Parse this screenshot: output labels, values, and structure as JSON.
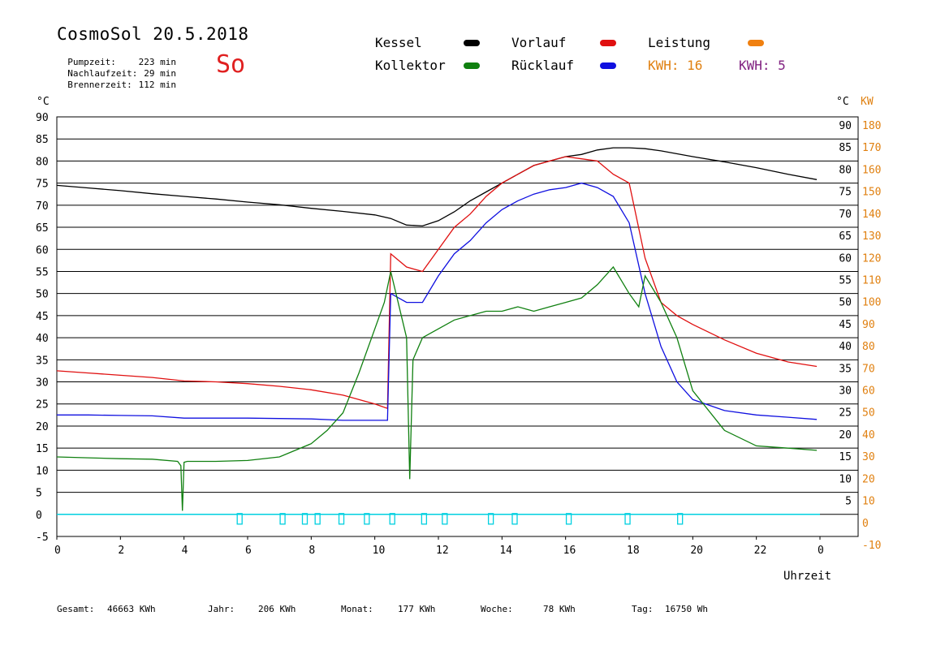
{
  "header": {
    "title": "CosmoSol 20.5.2018",
    "day_label": "So",
    "stats": [
      {
        "label": "Pumpzeit:",
        "value": "223 min"
      },
      {
        "label": "Nachlaufzeit:",
        "value": "29 min"
      },
      {
        "label": "Brennerzeit:",
        "value": "112 min"
      }
    ]
  },
  "legend": {
    "items": [
      {
        "label": "Kessel",
        "color": "#000000"
      },
      {
        "label": "Vorlauf",
        "color": "#e01010"
      },
      {
        "label": "Leistung",
        "color": "#f08010"
      },
      {
        "label": "Kollektor",
        "color": "#108010"
      },
      {
        "label": "Rücklauf",
        "color": "#1010e0"
      }
    ],
    "kwh_orange": "KWH: 16",
    "kwh_purple": "KWH: 5",
    "kwh_orange_color": "#e08010",
    "kwh_purple_color": "#802080"
  },
  "footer": {
    "items": [
      {
        "label": "Gesamt:",
        "value": "46663 KWh"
      },
      {
        "label": "Jahr:",
        "value": "206 KWh"
      },
      {
        "label": "Monat:",
        "value": "177 KWh"
      },
      {
        "label": "Woche:",
        "value": "78 KWh"
      },
      {
        "label": "Tag:",
        "value": "16750 Wh"
      }
    ]
  },
  "chart_data": {
    "type": "line",
    "xlabel": "Uhrzeit",
    "ylabel_left": "°C",
    "ylabel_right_1": "°C",
    "ylabel_right_2": "KW",
    "xlim": [
      0,
      24
    ],
    "ylim": [
      -5,
      90
    ],
    "x_ticks": [
      "0",
      "2",
      "4",
      "6",
      "8",
      "10",
      "12",
      "14",
      "16",
      "18",
      "20",
      "22",
      "0"
    ],
    "y_ticks_left": [
      "90",
      "85",
      "80",
      "75",
      "70",
      "65",
      "60",
      "55",
      "50",
      "45",
      "40",
      "35",
      "30",
      "25",
      "20",
      "15",
      "10",
      "5",
      "0",
      "-5"
    ],
    "y_ticks_right_c": [
      "90",
      "85",
      "80",
      "75",
      "70",
      "65",
      "60",
      "55",
      "50",
      "45",
      "40",
      "35",
      "30",
      "25",
      "20",
      "15",
      "10",
      "5"
    ],
    "y_ticks_right_kw": [
      "180",
      "170",
      "160",
      "150",
      "140",
      "130",
      "120",
      "110",
      "100",
      "90",
      "80",
      "70",
      "60",
      "50",
      "40",
      "30",
      "20",
      "10",
      "0",
      "-10"
    ],
    "grid": true,
    "series": [
      {
        "name": "Kessel",
        "color": "#000000",
        "x": [
          0,
          1,
          2,
          3,
          4,
          5,
          6,
          7,
          8,
          9,
          10,
          10.5,
          11,
          11.5,
          12,
          12.5,
          13,
          13.5,
          14,
          14.5,
          15,
          15.5,
          16,
          16.5,
          17,
          17.5,
          18,
          18.5,
          19,
          20,
          21,
          22,
          23,
          23.9
        ],
        "y": [
          74.5,
          73.9,
          73.3,
          72.6,
          72.0,
          71.4,
          70.7,
          70.1,
          69.3,
          68.6,
          67.8,
          67.0,
          65.5,
          65.3,
          66.5,
          68.5,
          71.0,
          73.0,
          75.0,
          77.0,
          79.0,
          80.0,
          81.0,
          81.5,
          82.5,
          83.0,
          83.0,
          82.8,
          82.3,
          81.0,
          79.8,
          78.5,
          77.0,
          75.8
        ]
      },
      {
        "name": "Vorlauf",
        "color": "#e01010",
        "x": [
          0,
          1,
          2,
          3,
          4,
          5,
          6,
          7,
          8,
          9,
          10,
          10.4,
          10.5,
          11,
          11.5,
          12,
          12.5,
          13,
          13.5,
          14,
          14.5,
          15,
          15.5,
          16,
          16.5,
          17,
          17.5,
          18,
          18.5,
          19,
          19.5,
          20,
          21,
          22,
          23,
          23.9
        ],
        "y": [
          32.5,
          32.0,
          31.5,
          31.0,
          30.2,
          30.0,
          29.6,
          29.0,
          28.2,
          27.0,
          25.0,
          24.0,
          59.0,
          56.0,
          55.0,
          60.0,
          65.0,
          68.0,
          72.0,
          75.0,
          77.0,
          79.0,
          80.0,
          81.0,
          80.5,
          80.0,
          77.0,
          75.0,
          58.0,
          48.0,
          45.0,
          43.0,
          39.5,
          36.5,
          34.5,
          33.5
        ]
      },
      {
        "name": "Rücklauf",
        "color": "#1010e0",
        "x": [
          0,
          1,
          2,
          3,
          4,
          5,
          6,
          7,
          8,
          9,
          10,
          10.4,
          10.5,
          11,
          11.5,
          12,
          12.5,
          13,
          13.5,
          14,
          14.5,
          15,
          15.5,
          16,
          16.5,
          17,
          17.5,
          18,
          18.5,
          19,
          19.5,
          20,
          21,
          22,
          23,
          23.9
        ],
        "y": [
          22.5,
          22.5,
          22.4,
          22.3,
          21.8,
          21.8,
          21.8,
          21.7,
          21.6,
          21.3,
          21.3,
          21.3,
          50.0,
          48.0,
          48.0,
          54.0,
          59.0,
          62.0,
          66.0,
          69.0,
          71.0,
          72.5,
          73.5,
          74.0,
          75.0,
          74.0,
          72.0,
          66.0,
          50.0,
          38.0,
          30.0,
          26.0,
          23.5,
          22.5,
          22.0,
          21.5
        ]
      },
      {
        "name": "Kollektor",
        "color": "#108010",
        "x": [
          0,
          1,
          2,
          3,
          3.8,
          3.9,
          3.95,
          4.0,
          4.1,
          5,
          6,
          7,
          8,
          8.5,
          9,
          9.5,
          10,
          10.3,
          10.5,
          11,
          11.1,
          11.2,
          11.5,
          12,
          12.5,
          13,
          13.5,
          14,
          14.5,
          15,
          15.5,
          16,
          16.5,
          17,
          17.5,
          18,
          18.3,
          18.5,
          19,
          19.5,
          20,
          21,
          22,
          23,
          23.9
        ],
        "y": [
          13.0,
          12.8,
          12.6,
          12.5,
          12.0,
          11.0,
          0.8,
          11.8,
          12.0,
          12.0,
          12.2,
          13.0,
          16.0,
          19.0,
          23.0,
          32.0,
          42.0,
          48.0,
          55.0,
          40.0,
          8.0,
          35.0,
          40.0,
          42.0,
          44.0,
          45.0,
          46.0,
          46.0,
          47.0,
          46.0,
          47.0,
          48.0,
          49.0,
          52.0,
          56.0,
          50.0,
          47.0,
          54.0,
          48.0,
          40.0,
          28.0,
          19.0,
          15.5,
          15.0,
          14.5
        ]
      }
    ]
  }
}
